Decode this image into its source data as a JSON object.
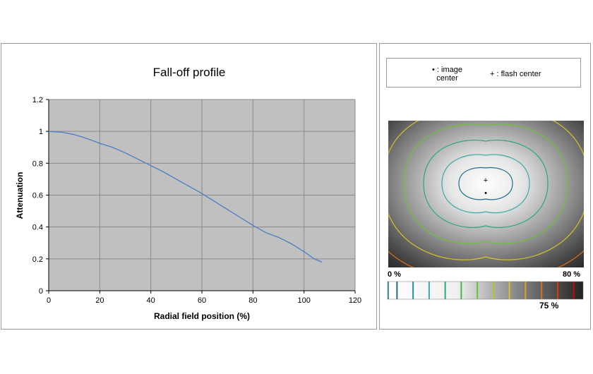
{
  "chart_data": [
    {
      "type": "line",
      "title": "Fall-off profile",
      "xlabel": "Radial field position (%)",
      "ylabel": "Attenuation",
      "xlim": [
        0,
        120
      ],
      "ylim": [
        0,
        1.2
      ],
      "x_ticks": [
        "0",
        "20",
        "40",
        "60",
        "80",
        "100",
        "120"
      ],
      "y_ticks": [
        "0",
        "0.2",
        "0.4",
        "0.6",
        "0.8",
        "1",
        "1.2"
      ],
      "grid": true,
      "plot_background": "#c0c0c0",
      "series": [
        {
          "color": "#4a7ec4",
          "x": [
            0,
            5,
            10,
            15,
            20,
            25,
            30,
            35,
            40,
            45,
            50,
            55,
            60,
            65,
            70,
            75,
            80,
            85,
            90,
            95,
            100,
            104,
            107
          ],
          "y": [
            1.0,
            0.995,
            0.98,
            0.955,
            0.925,
            0.9,
            0.865,
            0.825,
            0.785,
            0.745,
            0.7,
            0.655,
            0.61,
            0.56,
            0.51,
            0.46,
            0.41,
            0.365,
            0.335,
            0.295,
            0.245,
            0.2,
            0.18
          ]
        }
      ]
    },
    {
      "type": "heatmap",
      "legend": {
        "image_center_marker": "•",
        "image_center_label": ": image",
        "image_center_label2": "center",
        "flash_center_marker": "+",
        "flash_center_label": ": flash center"
      },
      "color_scale": {
        "min_label": "0 %",
        "max_label": "80 %",
        "marker_label": "75 %",
        "min": 0,
        "max": 80,
        "marked": 75
      },
      "contour_colors": [
        "#1f6f8b",
        "#2a8fa6",
        "#39a8a8",
        "#2aa87a",
        "#3cb84a",
        "#6cc23a",
        "#a6c82e",
        "#d6c22a",
        "#e0a020",
        "#e07018",
        "#d83a12",
        "#b81010"
      ]
    }
  ]
}
